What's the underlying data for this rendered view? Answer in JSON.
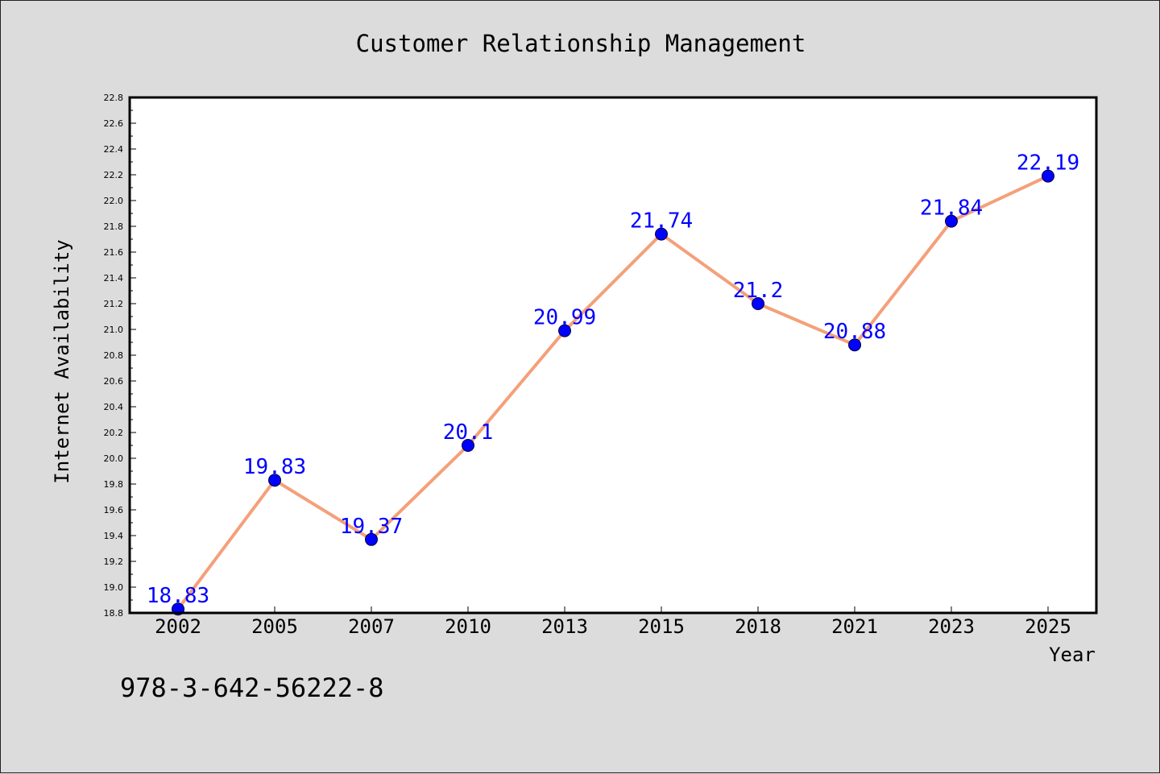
{
  "chart_data": {
    "type": "line",
    "title": "Customer Relationship Management",
    "xlabel": "Year",
    "ylabel": "Internet Availability",
    "categories": [
      "2002",
      "2005",
      "2007",
      "2010",
      "2013",
      "2015",
      "2018",
      "2021",
      "2023",
      "2025"
    ],
    "series": [
      {
        "values": [
          18.83,
          19.83,
          19.37,
          20.1,
          20.99,
          21.74,
          21.2,
          20.88,
          21.84,
          22.19
        ]
      }
    ],
    "data_labels": [
      "18.83",
      "19.83",
      "19.37",
      "20.1",
      "20.99",
      "21.74",
      "21.2",
      "20.88",
      "21.84",
      "22.19"
    ],
    "ylim": [
      18.8,
      22.8
    ],
    "yticks": [
      "18.8",
      "19.0",
      "19.2",
      "19.4",
      "19.6",
      "19.8",
      "20.0",
      "20.2",
      "20.4",
      "20.6",
      "20.8",
      "21.0",
      "21.2",
      "21.4",
      "21.6",
      "21.8",
      "22.0",
      "22.2",
      "22.4",
      "22.6",
      "22.8"
    ],
    "grid": false,
    "legend": "none",
    "colors": {
      "line": "#f4a07a",
      "marker": "#0000ff",
      "label": "#0000ff",
      "background": "#dcdcdc",
      "plot_bg": "#ffffff"
    }
  },
  "footnote": "978-3-642-56222-8"
}
